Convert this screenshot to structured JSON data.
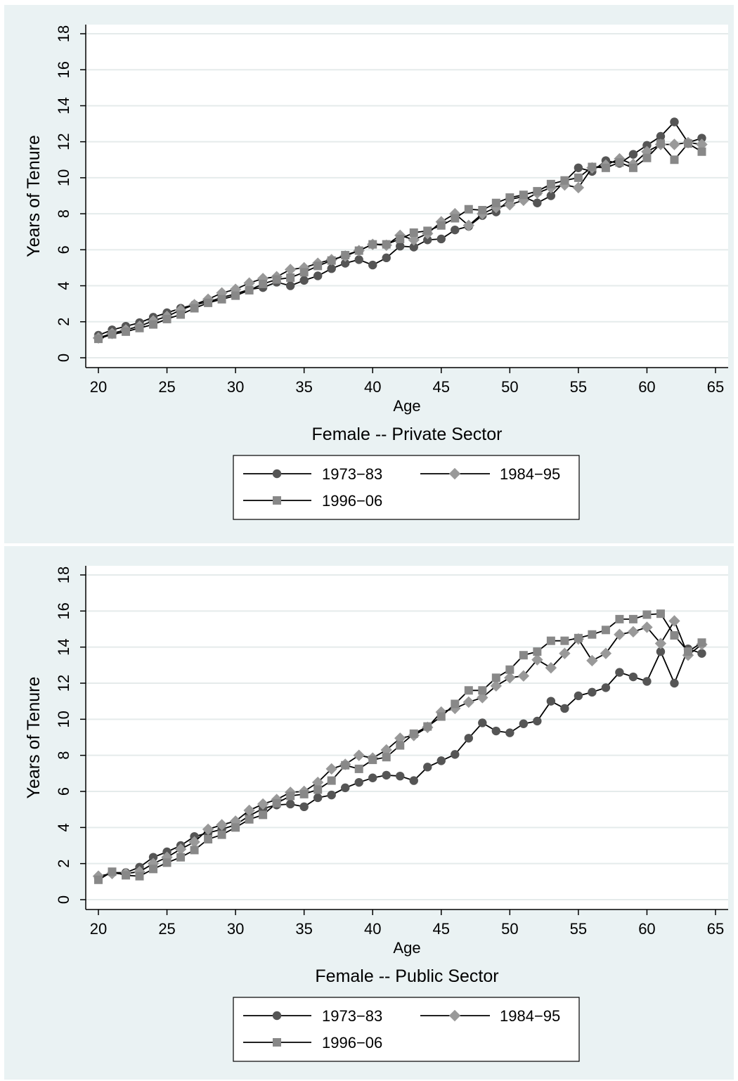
{
  "chart_data": [
    {
      "type": "line",
      "title": "Female -- Private Sector",
      "xlabel": "Age",
      "ylabel": "Years of Tenure",
      "xlim": [
        20,
        65
      ],
      "ylim": [
        0,
        18
      ],
      "xticks": [
        20,
        25,
        30,
        35,
        40,
        45,
        50,
        55,
        60,
        65
      ],
      "yticks": [
        0,
        2,
        4,
        6,
        8,
        10,
        12,
        14,
        16,
        18
      ],
      "grid": "horizontal",
      "legend_position": "bottom",
      "x": [
        20,
        21,
        22,
        23,
        24,
        25,
        26,
        27,
        28,
        29,
        30,
        31,
        32,
        33,
        34,
        35,
        36,
        37,
        38,
        39,
        40,
        41,
        42,
        43,
        44,
        45,
        46,
        47,
        48,
        49,
        50,
        51,
        52,
        53,
        54,
        55,
        56,
        57,
        58,
        59,
        60,
        61,
        62,
        63,
        64
      ],
      "series": [
        {
          "name": "1973−83",
          "marker": "circle",
          "color": "#555555",
          "values": [
            1.25,
            1.55,
            1.75,
            1.95,
            2.25,
            2.5,
            2.75,
            2.95,
            3.1,
            3.35,
            3.55,
            3.8,
            3.9,
            4.2,
            4.0,
            4.3,
            4.55,
            4.95,
            5.25,
            5.45,
            5.15,
            5.55,
            6.2,
            6.15,
            6.55,
            6.6,
            7.1,
            7.3,
            7.9,
            8.1,
            8.8,
            8.95,
            8.6,
            9.0,
            9.8,
            10.55,
            10.35,
            10.95,
            10.8,
            11.3,
            11.8,
            12.3,
            13.1,
            11.95,
            12.2
          ]
        },
        {
          "name": "1984−95",
          "marker": "diamond",
          "color": "#999999",
          "values": [
            1.1,
            1.35,
            1.55,
            1.75,
            2.05,
            2.3,
            2.65,
            2.95,
            3.25,
            3.6,
            3.8,
            4.15,
            4.4,
            4.5,
            4.9,
            5.0,
            5.25,
            5.45,
            5.65,
            5.95,
            6.3,
            6.25,
            6.8,
            6.55,
            6.9,
            7.55,
            8.0,
            7.35,
            8.0,
            8.35,
            8.5,
            8.75,
            9.15,
            9.45,
            9.6,
            9.45,
            10.55,
            10.7,
            11.05,
            10.75,
            11.45,
            11.85,
            11.85,
            11.95,
            11.85
          ]
        },
        {
          "name": "1996−06",
          "marker": "square",
          "color": "#888888",
          "values": [
            1.05,
            1.3,
            1.45,
            1.65,
            1.85,
            2.15,
            2.4,
            2.75,
            3.05,
            3.25,
            3.45,
            3.75,
            4.1,
            4.35,
            4.45,
            4.75,
            5.1,
            5.4,
            5.7,
            5.95,
            6.3,
            6.3,
            6.6,
            6.95,
            7.05,
            7.35,
            7.75,
            8.25,
            8.2,
            8.6,
            8.9,
            9.05,
            9.25,
            9.65,
            9.85,
            10.0,
            10.6,
            10.55,
            10.85,
            10.55,
            11.1,
            11.9,
            11.0,
            11.9,
            11.45
          ]
        }
      ]
    },
    {
      "type": "line",
      "title": "Female -- Public Sector",
      "xlabel": "Age",
      "ylabel": "Years of Tenure",
      "xlim": [
        20,
        65
      ],
      "ylim": [
        0,
        18
      ],
      "xticks": [
        20,
        25,
        30,
        35,
        40,
        45,
        50,
        55,
        60,
        65
      ],
      "yticks": [
        0,
        2,
        4,
        6,
        8,
        10,
        12,
        14,
        16,
        18
      ],
      "grid": "horizontal",
      "legend_position": "bottom",
      "x": [
        20,
        21,
        22,
        23,
        24,
        25,
        26,
        27,
        28,
        29,
        30,
        31,
        32,
        33,
        34,
        35,
        36,
        37,
        38,
        39,
        40,
        41,
        42,
        43,
        44,
        45,
        46,
        47,
        48,
        49,
        50,
        51,
        52,
        53,
        54,
        55,
        56,
        57,
        58,
        59,
        60,
        61,
        62,
        63,
        64
      ],
      "series": [
        {
          "name": "1973−83",
          "marker": "circle",
          "color": "#555555",
          "values": [
            1.2,
            1.5,
            1.5,
            1.8,
            2.35,
            2.65,
            3.0,
            3.5,
            3.7,
            3.9,
            4.15,
            4.65,
            5.05,
            5.25,
            5.3,
            5.15,
            5.65,
            5.8,
            6.2,
            6.5,
            6.75,
            6.9,
            6.85,
            6.6,
            7.35,
            7.7,
            8.05,
            8.95,
            9.8,
            9.35,
            9.25,
            9.75,
            9.9,
            11.0,
            10.6,
            11.3,
            11.5,
            11.75,
            12.6,
            12.35,
            12.1,
            13.75,
            12.0,
            13.9,
            13.65
          ]
        },
        {
          "name": "1984−95",
          "marker": "diamond",
          "color": "#999999",
          "values": [
            1.3,
            1.45,
            1.45,
            1.55,
            2.0,
            2.35,
            2.8,
            3.2,
            3.9,
            4.15,
            4.35,
            4.95,
            5.3,
            5.55,
            5.95,
            6.0,
            6.5,
            7.25,
            7.5,
            8.0,
            7.85,
            8.3,
            8.95,
            9.1,
            9.55,
            10.4,
            10.6,
            10.95,
            11.2,
            11.85,
            12.3,
            12.4,
            13.3,
            12.85,
            13.65,
            14.45,
            13.25,
            13.65,
            14.7,
            14.85,
            15.1,
            14.2,
            15.45,
            13.55,
            14.15
          ]
        },
        {
          "name": "1996−06",
          "marker": "square",
          "color": "#888888",
          "values": [
            1.1,
            1.55,
            1.35,
            1.3,
            1.7,
            2.05,
            2.35,
            2.75,
            3.35,
            3.6,
            4.0,
            4.45,
            4.7,
            5.35,
            5.75,
            5.85,
            6.1,
            6.6,
            7.45,
            7.25,
            7.75,
            7.9,
            8.55,
            9.2,
            9.6,
            10.15,
            10.85,
            11.6,
            11.6,
            12.3,
            12.75,
            13.55,
            13.75,
            14.35,
            14.35,
            14.5,
            14.7,
            14.95,
            15.55,
            15.55,
            15.8,
            15.85,
            14.65,
            13.75,
            14.25
          ]
        }
      ]
    }
  ]
}
